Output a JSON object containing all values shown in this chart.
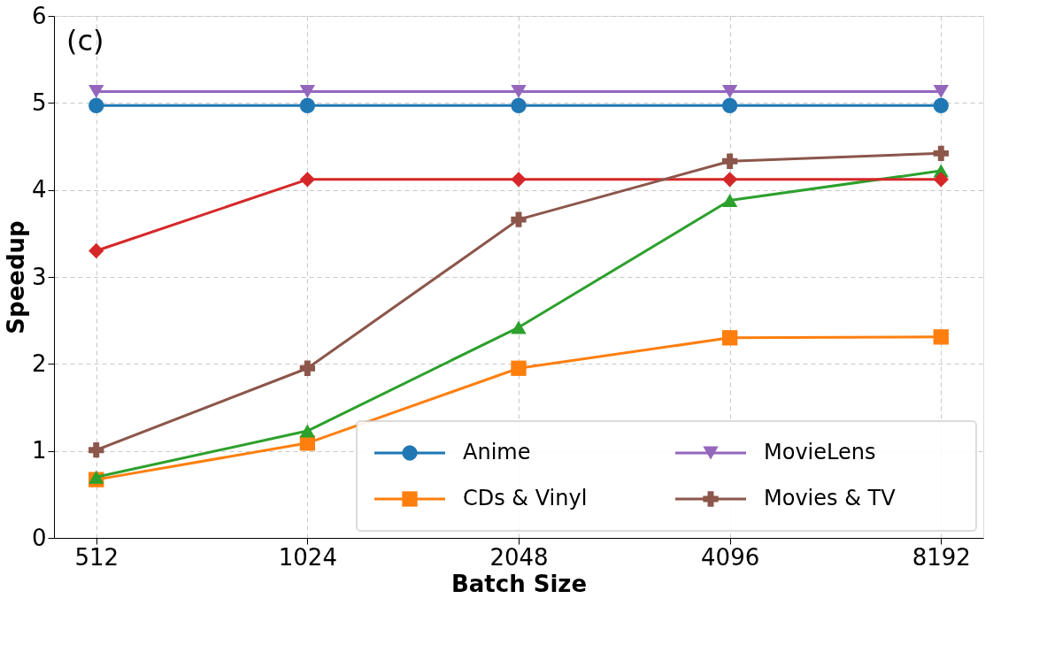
{
  "chart_data": {
    "type": "line",
    "xlabel": "Batch Size",
    "ylabel": "Speedup",
    "categories": [
      "512",
      "1024",
      "2048",
      "4096",
      "8192"
    ],
    "ylim": [
      0,
      6
    ],
    "yticks": [
      0,
      1,
      2,
      3,
      4,
      5,
      6
    ],
    "grid": true,
    "legend": "bottom right",
    "line_style": "solid",
    "annotations": [
      "(c)"
    ],
    "series": [
      {
        "name": "Anime",
        "color": "#1f77b4",
        "marker": "circle",
        "values": [
          4.97,
          4.97,
          4.97,
          4.97,
          4.97
        ]
      },
      {
        "name": "CDs & Vinyl",
        "color": "#ff7f0e",
        "marker": "square",
        "values": [
          0.67,
          1.09,
          1.95,
          2.3,
          2.31
        ]
      },
      {
        "color": "#2ca02c",
        "marker": "triangle",
        "values": [
          0.7,
          1.23,
          2.42,
          3.88,
          4.22
        ]
      },
      {
        "color": "#d62728",
        "marker": "diamond",
        "values": [
          3.3,
          4.12,
          4.12,
          4.12,
          4.12
        ]
      },
      {
        "name": "MovieLens",
        "color": "#9467bd",
        "marker": "triangle-down",
        "values": [
          5.13,
          5.13,
          5.13,
          5.13,
          5.13
        ]
      },
      {
        "name": "Movies & TV",
        "color": "#8c564b",
        "marker": "cross",
        "values": [
          1.01,
          1.95,
          3.66,
          4.33,
          4.42
        ]
      }
    ]
  }
}
